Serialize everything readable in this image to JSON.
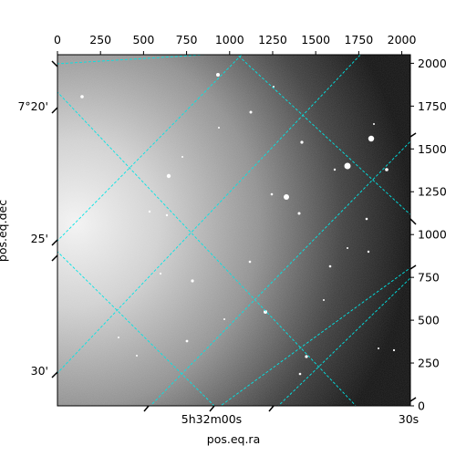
{
  "chart_data": {
    "type": "image",
    "xlabel": "pos.eq.ra",
    "ylabel": "pos.eq.dec",
    "pixel_axes": {
      "x": {
        "range": [
          0,
          2050
        ],
        "ticks": [
          "0",
          "250",
          "500",
          "750",
          "1000",
          "1250",
          "1500",
          "1750",
          "2000"
        ],
        "tick_values": [
          0,
          250,
          500,
          750,
          1000,
          1250,
          1500,
          1750,
          2000
        ]
      },
      "y": {
        "range": [
          0,
          2050
        ],
        "ticks": [
          "0",
          "250",
          "500",
          "750",
          "1000",
          "1250",
          "1500",
          "1750",
          "2000"
        ],
        "tick_values": [
          0,
          250,
          500,
          750,
          1000,
          1250,
          1500,
          1750,
          2000
        ]
      }
    },
    "world_axes": {
      "ra_ticks": [
        "5h32m00s",
        "30s"
      ],
      "dec_ticks": [
        "7°20'",
        "25'",
        "30'"
      ]
    },
    "grid": true,
    "grid_color": "#00e5e5",
    "colormap": "gray"
  }
}
